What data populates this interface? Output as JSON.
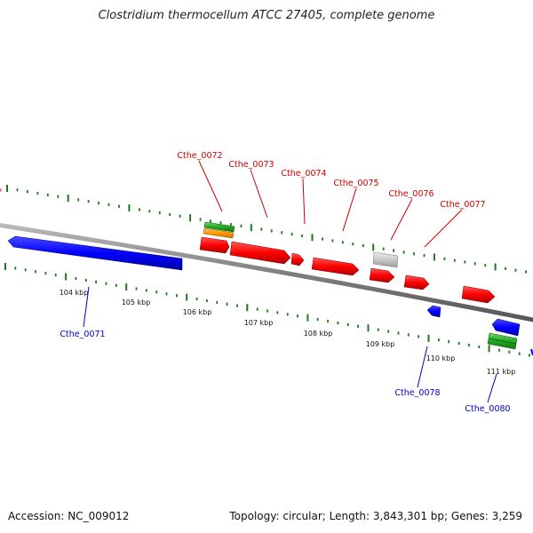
{
  "title": "Clostridium thermocellum ATCC 27405, complete genome",
  "footer": {
    "accession": "Accession: NC_009012",
    "summary": "Topology: circular; Length: 3,843,301 bp; Genes: 3,259"
  },
  "ticks": [
    "104 kbp",
    "105 kbp",
    "106 kbp",
    "107 kbp",
    "108 kbp",
    "109 kbp",
    "110 kbp",
    "111 kbp"
  ],
  "genes_forward": [
    "Cthe_0072",
    "Cthe_0073",
    "Cthe_0074",
    "Cthe_0075",
    "Cthe_0076",
    "Cthe_0077"
  ],
  "genes_reverse": [
    "Cthe_0071",
    "Cthe_0078",
    "Cthe_0080"
  ],
  "colors": {
    "forward_cds": "#ff0000",
    "reverse_cds": "#0000ff",
    "rna": "#22aa22",
    "orange_feature": "#ff9900",
    "gray_feature": "#c8c8c8",
    "backbone": "#808080",
    "gc_ticks": "#1a7a1a"
  }
}
